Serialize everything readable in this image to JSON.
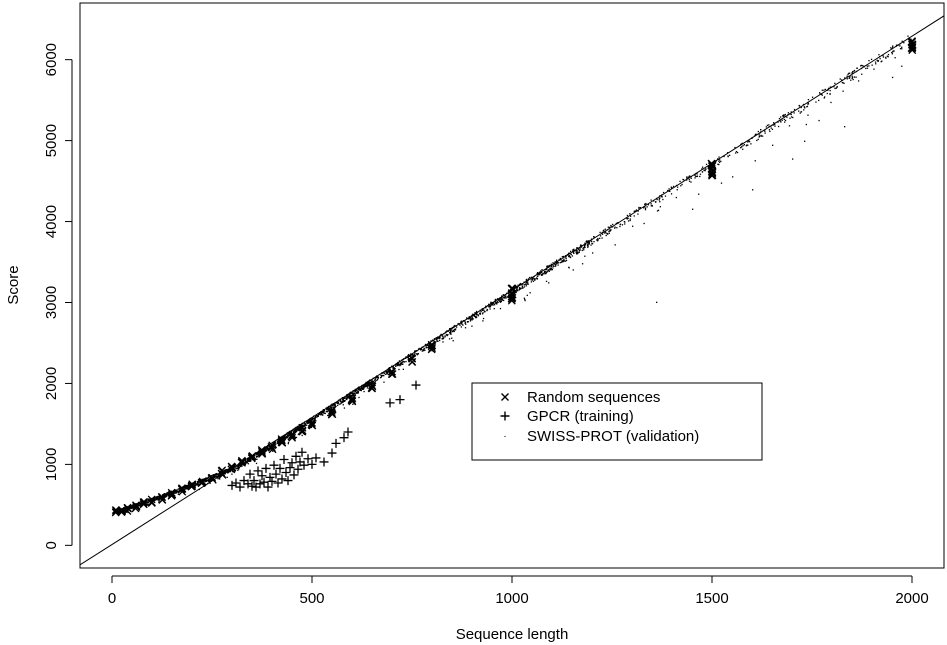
{
  "chart_data": {
    "type": "scatter",
    "xlabel": "Sequence length",
    "ylabel": "Score",
    "xlim": [
      -80,
      2080
    ],
    "ylim": [
      -280,
      6700
    ],
    "x_ticks": [
      0,
      500,
      1000,
      1500,
      2000
    ],
    "y_ticks": [
      0,
      1000,
      2000,
      3000,
      4000,
      5000,
      6000
    ],
    "grid": false,
    "legend_position": "center-right",
    "reference_line": {
      "slope": 3.14,
      "intercept": 10
    },
    "series": [
      {
        "name": "Random sequences",
        "marker": "x",
        "points": [
          [
            10,
            410
          ],
          [
            25,
            425
          ],
          [
            40,
            450
          ],
          [
            60,
            480
          ],
          [
            80,
            510
          ],
          [
            100,
            545
          ],
          [
            125,
            590
          ],
          [
            150,
            640
          ],
          [
            175,
            685
          ],
          [
            200,
            735
          ],
          [
            225,
            790
          ],
          [
            250,
            845
          ],
          [
            275,
            900
          ],
          [
            300,
            955
          ],
          [
            325,
            1020
          ],
          [
            350,
            1085
          ],
          [
            375,
            1150
          ],
          [
            400,
            1215
          ],
          [
            425,
            1285
          ],
          [
            450,
            1355
          ],
          [
            475,
            1425
          ],
          [
            500,
            1495
          ],
          [
            550,
            1650
          ],
          [
            600,
            1800
          ],
          [
            650,
            1960
          ],
          [
            700,
            2120
          ],
          [
            750,
            2290
          ],
          [
            800,
            2450
          ],
          [
            1000,
            3100
          ],
          [
            1500,
            4640
          ],
          [
            2000,
            6190
          ]
        ]
      },
      {
        "name": "GPCR (training)",
        "marker": "+",
        "points": [
          [
            300,
            740
          ],
          [
            310,
            770
          ],
          [
            320,
            720
          ],
          [
            330,
            800
          ],
          [
            340,
            760
          ],
          [
            345,
            880
          ],
          [
            350,
            730
          ],
          [
            355,
            800
          ],
          [
            360,
            720
          ],
          [
            365,
            920
          ],
          [
            370,
            760
          ],
          [
            375,
            860
          ],
          [
            380,
            780
          ],
          [
            385,
            950
          ],
          [
            390,
            720
          ],
          [
            395,
            840
          ],
          [
            400,
            790
          ],
          [
            405,
            990
          ],
          [
            410,
            880
          ],
          [
            415,
            770
          ],
          [
            420,
            950
          ],
          [
            425,
            820
          ],
          [
            430,
            1060
          ],
          [
            435,
            900
          ],
          [
            440,
            800
          ],
          [
            445,
            960
          ],
          [
            450,
            1020
          ],
          [
            455,
            870
          ],
          [
            460,
            1100
          ],
          [
            465,
            940
          ],
          [
            470,
            1030
          ],
          [
            475,
            1150
          ],
          [
            480,
            990
          ],
          [
            490,
            1070
          ],
          [
            500,
            1000
          ],
          [
            510,
            1080
          ],
          [
            530,
            1030
          ],
          [
            550,
            1140
          ],
          [
            560,
            1260
          ],
          [
            580,
            1330
          ],
          [
            590,
            1400
          ],
          [
            695,
            1760
          ],
          [
            720,
            1800
          ],
          [
            760,
            1980
          ]
        ]
      },
      {
        "name": "SWISS-PROT (validation)",
        "marker": "."
      }
    ]
  }
}
